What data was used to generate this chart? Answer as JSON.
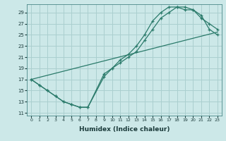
{
  "xlabel": "Humidex (Indice chaleur)",
  "bg_color": "#cce8e8",
  "grid_color": "#aacfcf",
  "line_color": "#2a7a6a",
  "xlim": [
    -0.5,
    23.5
  ],
  "ylim": [
    10.5,
    30.5
  ],
  "xticks": [
    0,
    1,
    2,
    3,
    4,
    5,
    6,
    7,
    8,
    9,
    10,
    11,
    12,
    13,
    14,
    15,
    16,
    17,
    18,
    19,
    20,
    21,
    22,
    23
  ],
  "yticks": [
    11,
    13,
    15,
    17,
    19,
    21,
    23,
    25,
    27,
    29
  ],
  "line1_x": [
    0,
    1,
    2,
    3,
    4,
    5,
    6,
    7,
    9,
    10,
    11,
    12,
    13,
    14,
    15,
    16,
    17,
    18,
    19,
    20,
    21,
    22,
    23
  ],
  "line1_y": [
    17,
    16,
    15,
    14,
    13,
    12.5,
    12,
    12,
    18,
    19,
    20,
    21,
    22,
    24,
    26,
    28,
    29,
    30,
    29.5,
    29.5,
    28.5,
    26,
    25
  ],
  "line2_x": [
    0,
    1,
    2,
    3,
    4,
    5,
    6,
    7,
    9,
    10,
    11,
    12,
    13,
    14,
    15,
    16,
    17,
    18,
    19,
    20,
    21,
    22,
    23
  ],
  "line2_y": [
    17,
    16,
    15,
    14,
    13,
    12.5,
    12,
    12,
    17.5,
    19,
    20.5,
    21.5,
    23,
    25,
    27.5,
    29,
    30,
    30,
    30,
    29.5,
    28,
    27,
    26
  ],
  "line3_x": [
    0,
    23
  ],
  "line3_y": [
    17,
    25.5
  ]
}
